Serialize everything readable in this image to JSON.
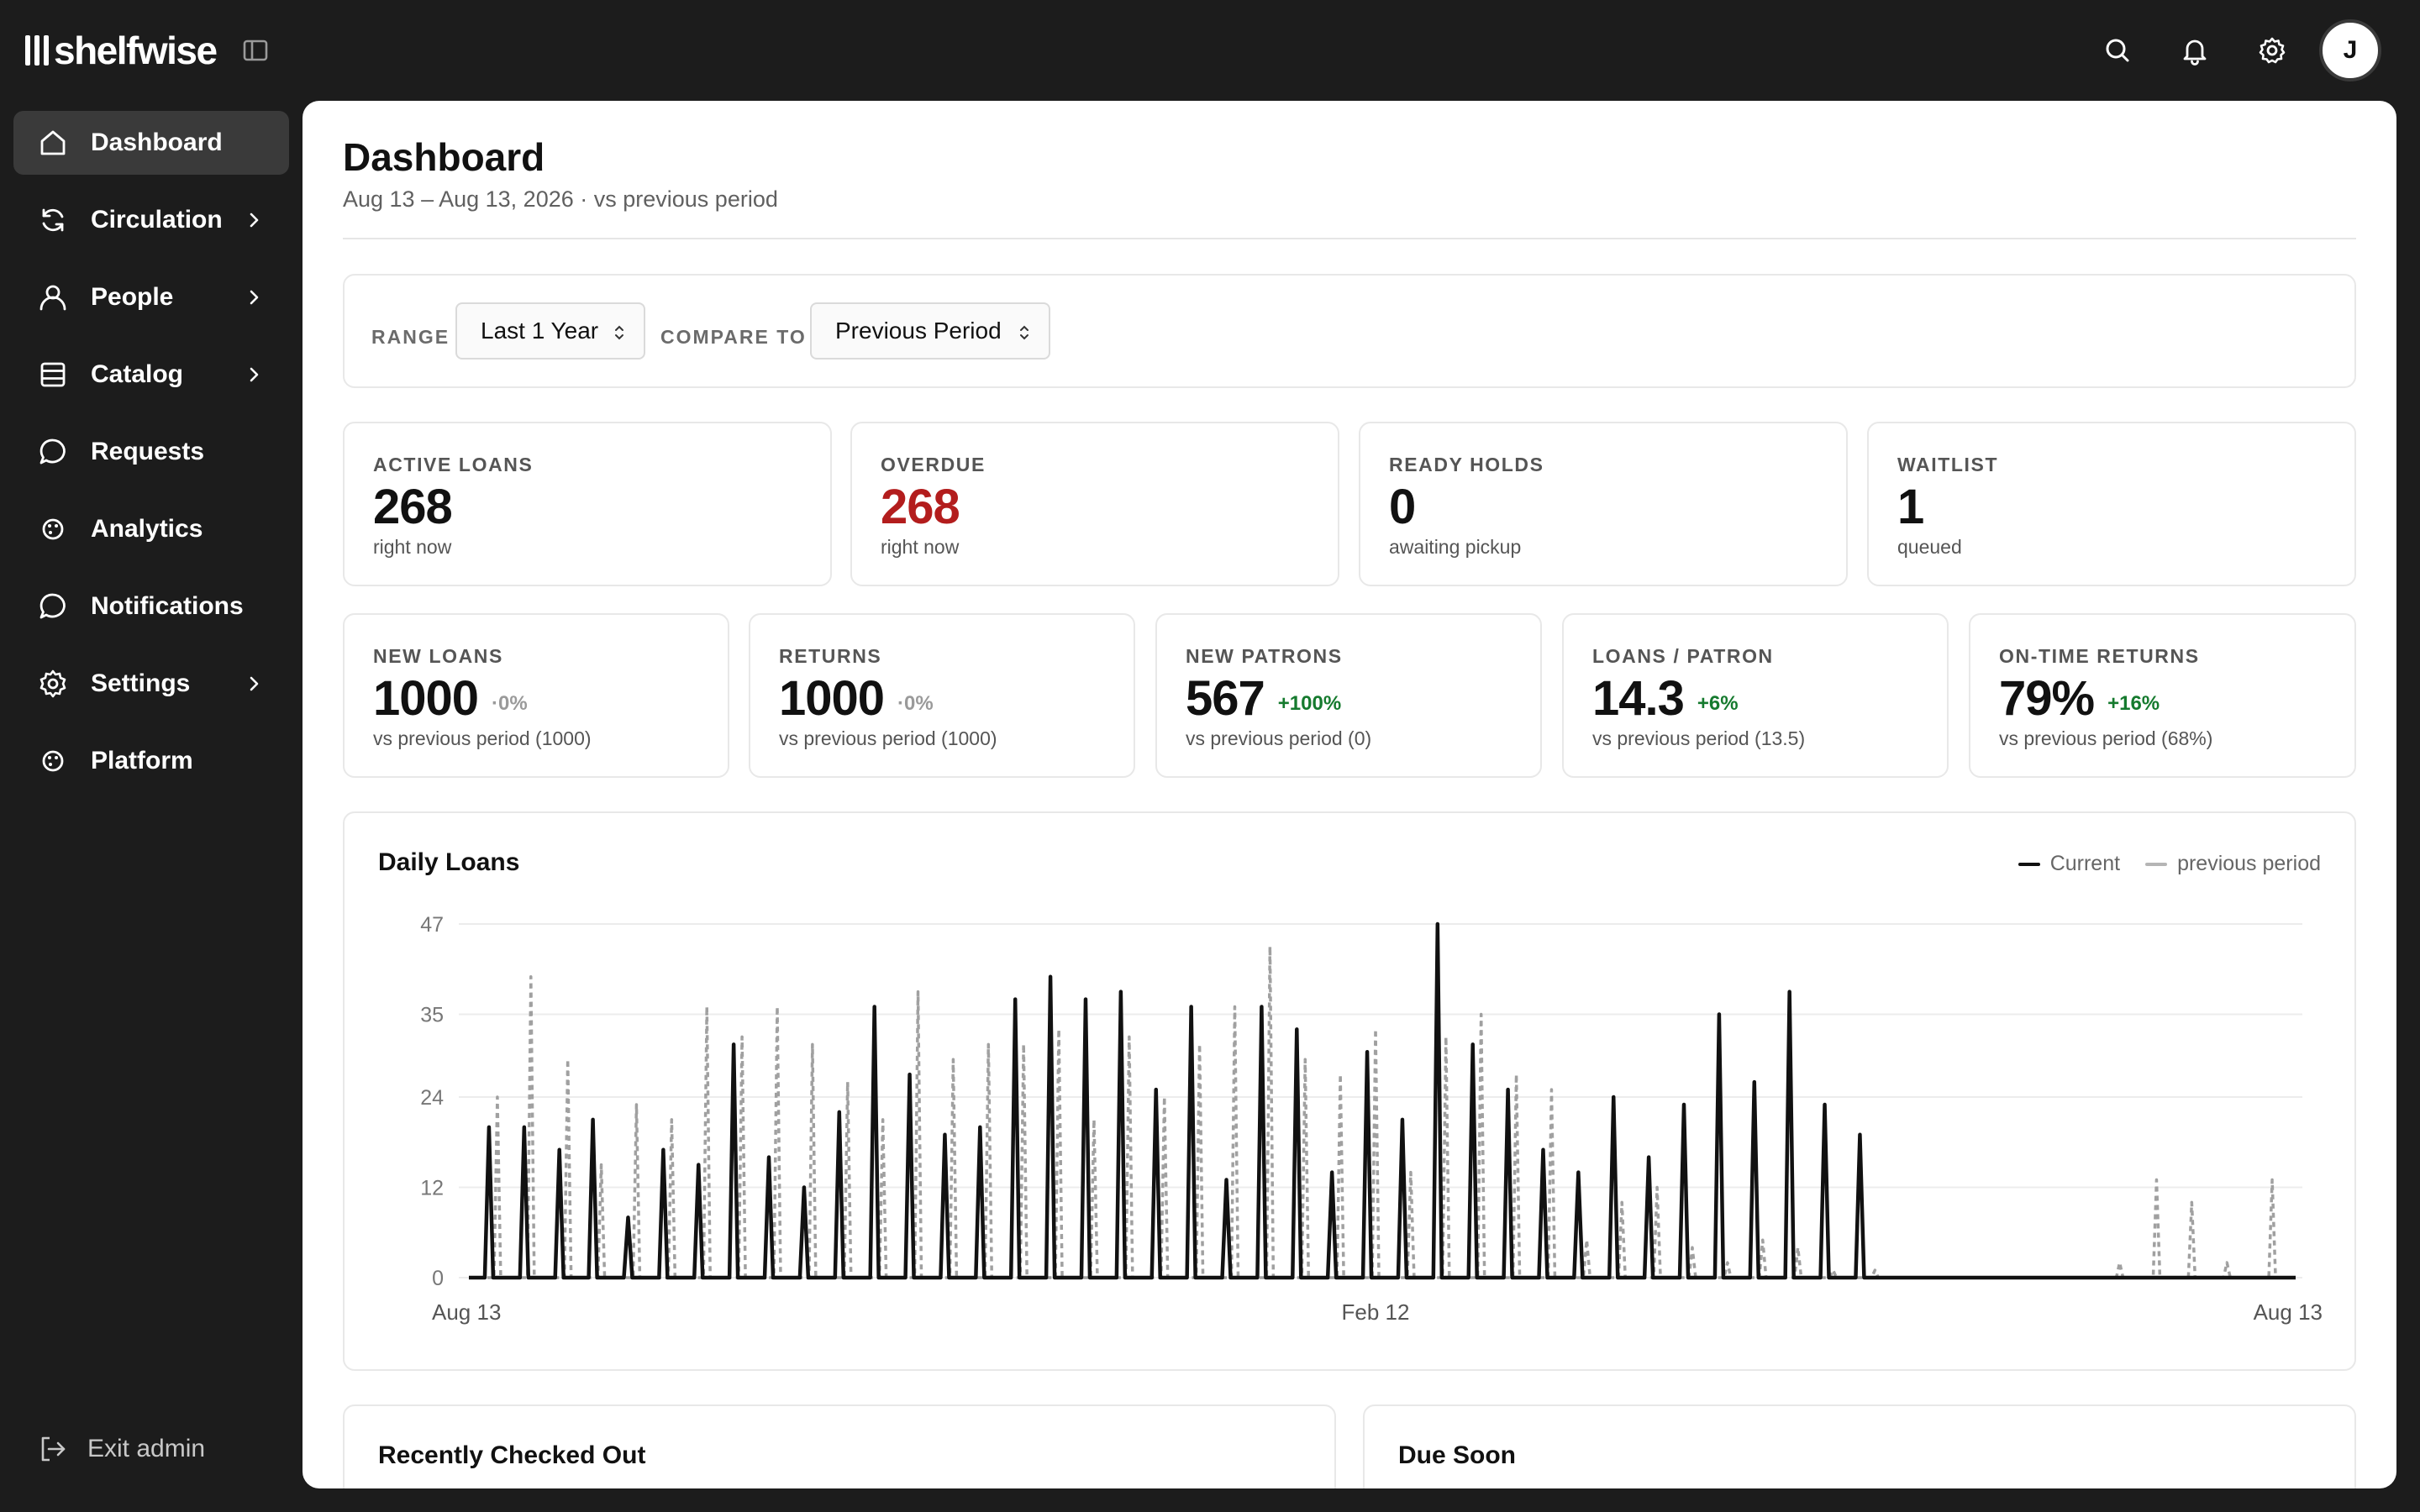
{
  "app": {
    "name": "shelfwise",
    "avatar_initial": "J"
  },
  "sidebar": {
    "items": [
      {
        "label": "Dashboard",
        "icon": "home-icon",
        "active": true,
        "chevron": false
      },
      {
        "label": "Circulation",
        "icon": "refresh-icon",
        "active": false,
        "chevron": true
      },
      {
        "label": "People",
        "icon": "person-icon",
        "active": false,
        "chevron": true
      },
      {
        "label": "Catalog",
        "icon": "database-icon",
        "active": false,
        "chevron": true
      },
      {
        "label": "Requests",
        "icon": "chat-icon",
        "active": false,
        "chevron": false
      },
      {
        "label": "Analytics",
        "icon": "palette-icon",
        "active": false,
        "chevron": false
      },
      {
        "label": "Notifications",
        "icon": "chat-icon",
        "active": false,
        "chevron": false
      },
      {
        "label": "Settings",
        "icon": "gear-icon",
        "active": false,
        "chevron": true
      },
      {
        "label": "Platform",
        "icon": "palette-icon",
        "active": false,
        "chevron": false
      }
    ],
    "exit_label": "Exit admin"
  },
  "header": {
    "title": "Dashboard",
    "subtitle": "Aug 13 – Aug 13, 2026 · vs previous period"
  },
  "filters": {
    "range_label": "RANGE",
    "range_value": "Last 1 Year",
    "compare_label": "COMPARE TO",
    "compare_value": "Previous Period"
  },
  "stats_top": [
    {
      "label": "ACTIVE LOANS",
      "value": "268",
      "sub": "right now",
      "alert": false
    },
    {
      "label": "OVERDUE",
      "value": "268",
      "sub": "right now",
      "alert": true
    },
    {
      "label": "READY HOLDS",
      "value": "0",
      "sub": "awaiting pickup",
      "alert": false
    },
    {
      "label": "WAITLIST",
      "value": "1",
      "sub": "queued",
      "alert": false
    }
  ],
  "stats_bottom": [
    {
      "label": "NEW LOANS",
      "value": "1000",
      "delta": "·0%",
      "delta_type": "neutral",
      "sub": "vs previous period (1000)"
    },
    {
      "label": "RETURNS",
      "value": "1000",
      "delta": "·0%",
      "delta_type": "neutral",
      "sub": "vs previous period (1000)"
    },
    {
      "label": "NEW PATRONS",
      "value": "567",
      "delta": "+100%",
      "delta_type": "up",
      "sub": "vs previous period (0)"
    },
    {
      "label": "LOANS / PATRON",
      "value": "14.3",
      "delta": "+6%",
      "delta_type": "up",
      "sub": "vs previous period (13.5)"
    },
    {
      "label": "ON-TIME RETURNS",
      "value": "79%",
      "delta": "+16%",
      "delta_type": "up",
      "sub": "vs previous period (68%)"
    }
  ],
  "colors": {
    "current": "#111111",
    "previous": "#9a9a9a",
    "overdue": "#b31d1d",
    "positive": "#157a2e"
  },
  "chart_data": {
    "type": "line",
    "title": "Daily Loans",
    "x_range": [
      "Aug 13",
      "Aug 13"
    ],
    "xtick_labels": [
      "Aug 13",
      "Feb 12",
      "Aug 13"
    ],
    "ylim": [
      0,
      47
    ],
    "yticks": [
      0,
      12,
      24,
      35,
      47
    ],
    "grid": true,
    "legend_position": "top-right",
    "series": [
      {
        "name": "Current",
        "style": "solid",
        "spikes": [
          [
            12,
            20
          ],
          [
            33,
            20
          ],
          [
            54,
            17
          ],
          [
            74,
            21
          ],
          [
            95,
            8
          ],
          [
            116,
            17
          ],
          [
            137,
            15
          ],
          [
            158,
            31
          ],
          [
            179,
            16
          ],
          [
            200,
            12
          ],
          [
            221,
            22
          ],
          [
            242,
            36
          ],
          [
            263,
            27
          ],
          [
            284,
            19
          ],
          [
            305,
            20
          ],
          [
            326,
            37
          ],
          [
            347,
            40
          ],
          [
            368,
            37
          ],
          [
            389,
            38
          ],
          [
            410,
            25
          ],
          [
            431,
            36
          ],
          [
            452,
            13
          ],
          [
            473,
            36
          ],
          [
            494,
            33
          ],
          [
            515,
            14
          ],
          [
            536,
            30
          ],
          [
            557,
            21
          ],
          [
            578,
            47
          ],
          [
            599,
            31
          ],
          [
            620,
            25
          ],
          [
            641,
            17
          ],
          [
            662,
            14
          ],
          [
            683,
            24
          ],
          [
            704,
            16
          ],
          [
            725,
            23
          ],
          [
            746,
            35
          ],
          [
            767,
            26
          ],
          [
            788,
            38
          ],
          [
            809,
            23
          ],
          [
            830,
            19
          ]
        ]
      },
      {
        "name": "previous period",
        "style": "dashed",
        "spikes": [
          [
            17,
            24
          ],
          [
            37,
            40
          ],
          [
            59,
            29
          ],
          [
            79,
            15
          ],
          [
            100,
            23
          ],
          [
            121,
            21
          ],
          [
            142,
            36
          ],
          [
            163,
            32
          ],
          [
            184,
            36
          ],
          [
            205,
            31
          ],
          [
            226,
            26
          ],
          [
            247,
            21
          ],
          [
            268,
            38
          ],
          [
            289,
            29
          ],
          [
            310,
            31
          ],
          [
            331,
            31
          ],
          [
            352,
            33
          ],
          [
            373,
            21
          ],
          [
            394,
            32
          ],
          [
            415,
            24
          ],
          [
            436,
            31
          ],
          [
            457,
            36
          ],
          [
            478,
            44
          ],
          [
            499,
            29
          ],
          [
            520,
            27
          ],
          [
            541,
            33
          ],
          [
            562,
            14
          ],
          [
            583,
            32
          ],
          [
            604,
            35
          ],
          [
            625,
            27
          ],
          [
            646,
            25
          ],
          [
            667,
            5
          ],
          [
            688,
            10
          ],
          [
            709,
            12
          ],
          [
            730,
            4
          ],
          [
            751,
            2
          ],
          [
            772,
            5
          ],
          [
            793,
            4
          ],
          [
            814,
            1
          ],
          [
            839,
            1
          ],
          [
            985,
            2
          ],
          [
            1007,
            13
          ],
          [
            1028,
            10
          ],
          [
            1049,
            2
          ],
          [
            1076,
            13
          ]
        ]
      }
    ]
  },
  "bottom_cards": [
    {
      "title": "Recently Checked Out"
    },
    {
      "title": "Due Soon"
    }
  ]
}
